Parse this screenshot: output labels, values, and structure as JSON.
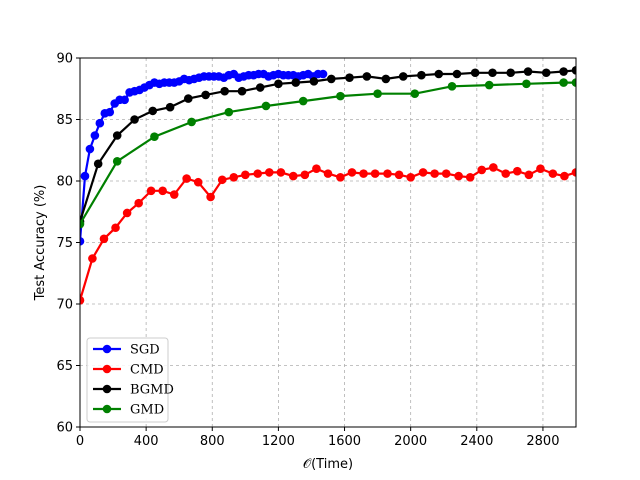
{
  "chart_data": {
    "type": "line",
    "xlabel": "𝒪(Time)",
    "ylabel": "Test Accuracy (%)",
    "xlim": [
      0,
      3000
    ],
    "ylim": [
      60,
      90
    ],
    "xticks": [
      0,
      400,
      800,
      1200,
      1600,
      2000,
      2400,
      2800
    ],
    "yticks": [
      60,
      65,
      70,
      75,
      80,
      85,
      90
    ],
    "grid": true,
    "legend_position": "lower-left",
    "series": [
      {
        "name": "SGD",
        "color": "#0000ff",
        "x": [
          0,
          30,
          60,
          90,
          120,
          150,
          180,
          210,
          240,
          270,
          300,
          330,
          360,
          390,
          420,
          450,
          480,
          510,
          540,
          570,
          600,
          630,
          660,
          690,
          720,
          750,
          780,
          810,
          840,
          870,
          900,
          930,
          960,
          990,
          1020,
          1050,
          1080,
          1110,
          1140,
          1170,
          1200,
          1230,
          1260,
          1290,
          1320,
          1350,
          1380,
          1410,
          1440,
          1470
        ],
        "y": [
          75.1,
          80.4,
          82.6,
          83.7,
          84.7,
          85.5,
          85.6,
          86.3,
          86.6,
          86.6,
          87.2,
          87.3,
          87.4,
          87.6,
          87.8,
          88.0,
          87.9,
          88.0,
          88.0,
          88.0,
          88.1,
          88.3,
          88.2,
          88.3,
          88.4,
          88.5,
          88.5,
          88.5,
          88.5,
          88.4,
          88.6,
          88.7,
          88.4,
          88.5,
          88.6,
          88.6,
          88.7,
          88.7,
          88.5,
          88.6,
          88.7,
          88.6,
          88.6,
          88.6,
          88.5,
          88.6,
          88.7,
          88.5,
          88.7,
          88.7
        ]
      },
      {
        "name": "CMD",
        "color": "#ff0000",
        "x": [
          0,
          75,
          145,
          215,
          285,
          355,
          430,
          500,
          570,
          645,
          715,
          790,
          860,
          930,
          1000,
          1075,
          1145,
          1215,
          1290,
          1360,
          1430,
          1500,
          1575,
          1645,
          1715,
          1785,
          1860,
          1930,
          2000,
          2075,
          2145,
          2215,
          2290,
          2360,
          2430,
          2500,
          2575,
          2645,
          2715,
          2785,
          2860,
          2930,
          3000
        ],
        "y": [
          70.3,
          73.7,
          75.3,
          76.2,
          77.4,
          78.2,
          79.2,
          79.2,
          78.9,
          80.2,
          79.9,
          78.7,
          80.1,
          80.3,
          80.5,
          80.6,
          80.7,
          80.7,
          80.4,
          80.5,
          81.0,
          80.6,
          80.3,
          80.7,
          80.6,
          80.6,
          80.6,
          80.5,
          80.3,
          80.7,
          80.6,
          80.6,
          80.4,
          80.3,
          80.9,
          81.1,
          80.6,
          80.8,
          80.5,
          81.0,
          80.6,
          80.4,
          80.7
        ]
      },
      {
        "name": "BGMD",
        "color": "#000000",
        "x": [
          0,
          110,
          225,
          330,
          440,
          545,
          655,
          760,
          875,
          980,
          1090,
          1200,
          1305,
          1415,
          1520,
          1630,
          1735,
          1850,
          1955,
          2065,
          2170,
          2280,
          2390,
          2495,
          2605,
          2710,
          2820,
          2925,
          3000
        ],
        "y": [
          76.7,
          81.4,
          83.7,
          85.0,
          85.7,
          86.0,
          86.7,
          87.0,
          87.3,
          87.3,
          87.6,
          87.9,
          88.0,
          88.1,
          88.3,
          88.4,
          88.5,
          88.3,
          88.5,
          88.6,
          88.7,
          88.7,
          88.8,
          88.8,
          88.8,
          88.9,
          88.8,
          88.9,
          89.0
        ]
      },
      {
        "name": "GMD",
        "color": "#008000",
        "x": [
          0,
          225,
          450,
          675,
          900,
          1125,
          1350,
          1575,
          1800,
          2025,
          2250,
          2475,
          2700,
          2925,
          3000
        ],
        "y": [
          76.5,
          81.6,
          83.6,
          84.8,
          85.6,
          86.1,
          86.5,
          86.9,
          87.1,
          87.1,
          87.7,
          87.8,
          87.9,
          88.0,
          88.0
        ]
      }
    ]
  }
}
